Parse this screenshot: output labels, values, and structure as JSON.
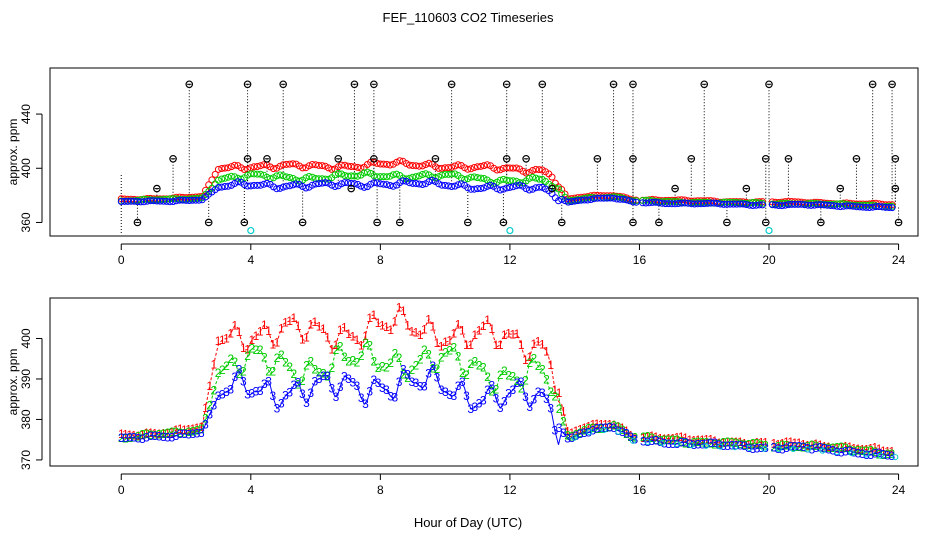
{
  "title": "FEF_110603  CO2 Timeseries",
  "xlabel": "Hour of Day (UTC)",
  "chart_data": [
    {
      "type": "scatter",
      "title": "FEF_110603  CO2 Timeseries",
      "xlabel": "",
      "ylabel": "approx. ppm",
      "xlim": [
        -2.2,
        24.6
      ],
      "ylim": [
        350,
        474
      ],
      "xticks": [
        0,
        4,
        8,
        12,
        16,
        20,
        24
      ],
      "xtick_labels": [
        "0",
        "4",
        "8",
        "12",
        "16",
        "20",
        "24"
      ],
      "yticks": [
        360,
        400,
        440
      ],
      "ytick_labels": [
        "360",
        "400",
        "440"
      ],
      "colors": {
        "series1": "#ff0000",
        "series2": "#00cc00",
        "series3": "#0000ff",
        "spikes": "#000000",
        "low": "#00cccc"
      },
      "spikes_high": [
        {
          "x": 2.1,
          "y": 462
        },
        {
          "x": 3.9,
          "y": 462
        },
        {
          "x": 5.0,
          "y": 462
        },
        {
          "x": 7.2,
          "y": 462
        },
        {
          "x": 7.8,
          "y": 462
        },
        {
          "x": 10.2,
          "y": 462
        },
        {
          "x": 11.9,
          "y": 462
        },
        {
          "x": 13.0,
          "y": 462
        },
        {
          "x": 15.2,
          "y": 462
        },
        {
          "x": 15.8,
          "y": 462
        },
        {
          "x": 18.0,
          "y": 462
        },
        {
          "x": 20.0,
          "y": 462
        },
        {
          "x": 23.2,
          "y": 462
        },
        {
          "x": 23.8,
          "y": 462
        }
      ],
      "spikes_mid": [
        {
          "x": 1.6,
          "y": 407
        },
        {
          "x": 3.9,
          "y": 407
        },
        {
          "x": 4.5,
          "y": 407
        },
        {
          "x": 6.7,
          "y": 407
        },
        {
          "x": 7.8,
          "y": 407
        },
        {
          "x": 9.7,
          "y": 407
        },
        {
          "x": 11.9,
          "y": 407
        },
        {
          "x": 12.5,
          "y": 407
        },
        {
          "x": 14.7,
          "y": 407
        },
        {
          "x": 15.8,
          "y": 407
        },
        {
          "x": 17.6,
          "y": 407
        },
        {
          "x": 19.9,
          "y": 407
        },
        {
          "x": 20.6,
          "y": 407
        },
        {
          "x": 22.7,
          "y": 407
        },
        {
          "x": 23.9,
          "y": 407
        }
      ],
      "spikes_upper": [
        {
          "x": 1.1,
          "y": 385
        },
        {
          "x": 7.1,
          "y": 385
        },
        {
          "x": 13.3,
          "y": 385
        },
        {
          "x": 17.1,
          "y": 385
        },
        {
          "x": 19.3,
          "y": 385
        },
        {
          "x": 22.2,
          "y": 385
        },
        {
          "x": 23.9,
          "y": 385
        }
      ],
      "spikes_low": [
        {
          "x": 0.5,
          "y": 360
        },
        {
          "x": 2.7,
          "y": 360
        },
        {
          "x": 3.8,
          "y": 360
        },
        {
          "x": 5.6,
          "y": 360
        },
        {
          "x": 7.9,
          "y": 360
        },
        {
          "x": 8.6,
          "y": 360
        },
        {
          "x": 10.7,
          "y": 360
        },
        {
          "x": 11.8,
          "y": 360
        },
        {
          "x": 13.6,
          "y": 360
        },
        {
          "x": 15.8,
          "y": 360
        },
        {
          "x": 16.6,
          "y": 360
        },
        {
          "x": 18.7,
          "y": 360
        },
        {
          "x": 19.9,
          "y": 360
        },
        {
          "x": 21.6,
          "y": 360
        },
        {
          "x": 24.0,
          "y": 360
        }
      ],
      "low_points": [
        {
          "x": 4.0,
          "y": 354
        },
        {
          "x": 12.0,
          "y": 354
        },
        {
          "x": 20.0,
          "y": 354
        }
      ],
      "gaps": [
        [
          15.9,
          16.0
        ],
        [
          19.9,
          20.1
        ]
      ],
      "profile_x": [
        0.0,
        1.6,
        2.5,
        2.8,
        3.0,
        4.0,
        6.0,
        8.0,
        10.0,
        12.0,
        13.0,
        13.8,
        14.3,
        15.2,
        15.8,
        17.5,
        20.0,
        21.0,
        22.5,
        23.9
      ],
      "profile_y": [
        375,
        376,
        377,
        382,
        386,
        388,
        387,
        389,
        388,
        385,
        385,
        375,
        377,
        378,
        375,
        374,
        373,
        373,
        372,
        371
      ],
      "offsets": {
        "series1": [
          2.0,
          14.0
        ],
        "series2": [
          1.0,
          6.0
        ],
        "series3": [
          0.0,
          0.0
        ]
      }
    },
    {
      "type": "scatter",
      "title": "",
      "xlabel": "Hour of Day (UTC)",
      "ylabel": "approx. ppm",
      "xlim": [
        -2.2,
        24.6
      ],
      "ylim": [
        368.5,
        410
      ],
      "xticks": [
        0,
        4,
        8,
        12,
        16,
        20,
        24
      ],
      "xtick_labels": [
        "0",
        "4",
        "8",
        "12",
        "16",
        "20",
        "24"
      ],
      "yticks": [
        370,
        380,
        390,
        400
      ],
      "ytick_labels": [
        "370",
        "380",
        "390",
        "400"
      ],
      "markers": {
        "series1": "1",
        "series2": "2",
        "series3": "3"
      },
      "colors": {
        "series1": "#ff0000",
        "series2": "#00cc00",
        "series3": "#0000ff",
        "low": "#00cccc"
      },
      "gaps": [
        [
          15.9,
          16.0
        ],
        [
          19.9,
          20.1
        ]
      ],
      "profile_x": [
        0.0,
        1.6,
        2.5,
        2.8,
        3.0,
        4.0,
        6.0,
        8.0,
        10.0,
        12.0,
        13.0,
        13.8,
        14.3,
        15.2,
        15.8,
        17.5,
        20.0,
        21.0,
        22.5,
        23.9
      ],
      "profile_y": [
        375,
        376,
        377,
        382,
        386,
        388,
        387,
        389,
        388,
        385,
        385,
        375,
        377,
        378,
        375,
        374,
        373,
        373,
        372,
        371
      ],
      "offsets": {
        "series1": [
          1.0,
          14.0
        ],
        "series2": [
          0.5,
          6.0
        ],
        "series3": [
          0.0,
          0.0
        ]
      }
    }
  ]
}
